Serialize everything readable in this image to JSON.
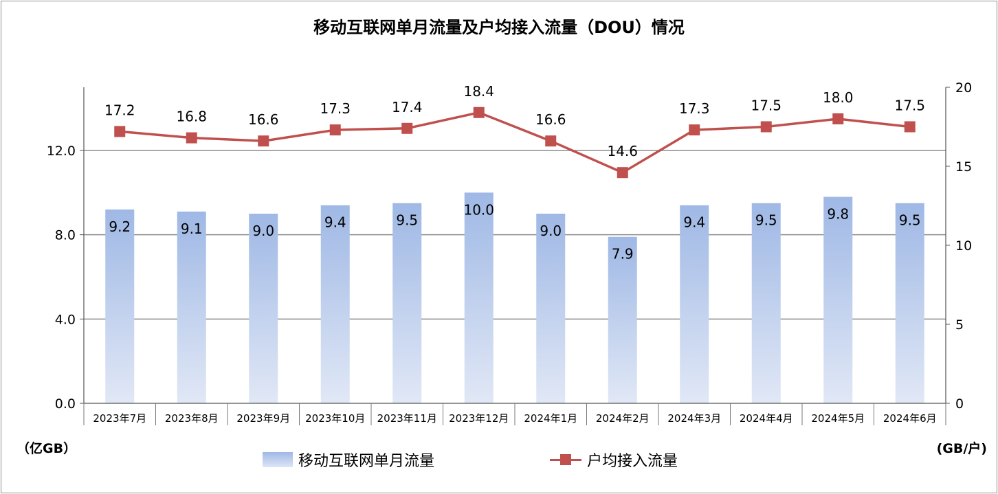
{
  "chart_data": {
    "type": "bar",
    "title": "移动互联网单月流量及户均接入流量（DOU）情况",
    "categories": [
      "2023年7月",
      "2023年8月",
      "2023年9月",
      "2023年10月",
      "2023年11月",
      "2023年12月",
      "2024年1月",
      "2024年2月",
      "2024年3月",
      "2024年4月",
      "2024年5月",
      "2024年6月"
    ],
    "series": [
      {
        "name": "移动互联网单月流量",
        "type": "bar",
        "axis": "left",
        "values": [
          9.2,
          9.1,
          9.0,
          9.4,
          9.5,
          10.0,
          9.0,
          7.9,
          9.4,
          9.5,
          9.8,
          9.5
        ],
        "labels": [
          "9.2",
          "9.1",
          "9.0",
          "9.4",
          "9.5",
          "10.0",
          "9.0",
          "7.9",
          "9.4",
          "9.5",
          "9.8",
          "9.5"
        ],
        "color": "#9fb8e5"
      },
      {
        "name": "户均接入流量",
        "type": "line",
        "axis": "right",
        "values": [
          17.2,
          16.8,
          16.6,
          17.3,
          17.4,
          18.4,
          16.6,
          14.6,
          17.3,
          17.5,
          18.0,
          17.5
        ],
        "labels": [
          "17.2",
          "16.8",
          "16.6",
          "17.3",
          "17.4",
          "18.4",
          "16.6",
          "14.6",
          "17.3",
          "17.5",
          "18.0",
          "17.5"
        ],
        "color": "#c0504d"
      }
    ],
    "y_left": {
      "unit": "（亿GB）",
      "ylim": [
        0,
        15
      ],
      "ticks": [
        0,
        4,
        8,
        12
      ],
      "tick_labels": [
        "0.0",
        "4.0",
        "8.0",
        "12.0"
      ]
    },
    "y_right": {
      "unit": "(GB/户)",
      "ylim": [
        0,
        20
      ],
      "ticks": [
        0,
        5,
        10,
        15,
        20
      ],
      "tick_labels": [
        "0",
        "5",
        "10",
        "15",
        "20"
      ]
    },
    "grid": true,
    "legend": "bottom-center"
  }
}
